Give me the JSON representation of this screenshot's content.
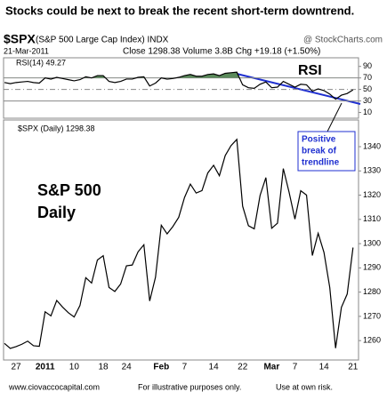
{
  "title": "Stocks could be next to break the recent short-term downtrend.",
  "header": {
    "symbol": "$SPX",
    "name": "(S&P 500 Large Cap Index) INDX",
    "source": "@ StockCharts.com",
    "date": "21-Mar-2011",
    "stats": "Close 1298.38  Volume 3.8B  Chg +19.18 (+1.50%)"
  },
  "footer": [
    "www.ciovaccocapital.com",
    "For illustrative purposes only.",
    "Use at own risk."
  ],
  "chart_data": [
    {
      "type": "line",
      "annotation": "RSI",
      "series": [
        {
          "name": "RSI(14) 49.27",
          "color": "#000000",
          "fill": "#5a8a5a",
          "values": [
            62,
            60,
            62,
            63,
            64,
            62,
            61,
            70,
            68,
            71,
            69,
            67,
            65,
            67,
            72,
            70,
            74,
            74,
            64,
            62,
            64,
            68,
            68,
            71,
            72,
            56,
            61,
            70,
            68,
            69,
            71,
            74,
            76,
            73,
            73,
            76,
            77,
            74,
            78,
            79,
            80,
            58,
            53,
            52,
            59,
            63,
            53,
            54,
            64,
            59,
            54,
            59,
            58,
            47,
            51,
            48,
            42,
            33,
            40,
            43,
            49.27
          ]
        }
      ],
      "ylim": [
        0,
        105
      ],
      "yticks": [
        10,
        30,
        50,
        70,
        90
      ],
      "reference_lines": [
        70,
        50,
        30
      ]
    },
    {
      "type": "line",
      "annotation": [
        "S&P 500",
        "Daily"
      ],
      "callout": [
        "Positive",
        "break of",
        "trendline"
      ],
      "categories": [
        null,
        null,
        "27",
        null,
        null,
        null,
        null,
        "2011",
        null,
        null,
        null,
        null,
        "10",
        null,
        null,
        null,
        null,
        "18",
        null,
        null,
        null,
        "24",
        null,
        null,
        null,
        null,
        null,
        "Feb",
        null,
        null,
        null,
        "7",
        null,
        null,
        null,
        null,
        "14",
        null,
        null,
        null,
        null,
        "22",
        null,
        null,
        null,
        null,
        "Mar",
        null,
        null,
        null,
        "7",
        null,
        null,
        null,
        null,
        "14",
        null,
        null,
        null,
        null,
        "21"
      ],
      "series": [
        {
          "name": "$SPX (Daily) 1298.38",
          "color": "#000000",
          "values": [
            1258.84,
            1256.77,
            1257.54,
            1258.51,
            1259.78,
            1257.88,
            1257.64,
            1271.87,
            1270.2,
            1276.56,
            1273.85,
            1271.5,
            1269.75,
            1274.48,
            1285.96,
            1283.76,
            1293.24,
            1295.02,
            1281.92,
            1280.26,
            1283.35,
            1290.84,
            1291.18,
            1296.63,
            1299.54,
            1276.34,
            1286.12,
            1307.59,
            1304.03,
            1307.1,
            1310.87,
            1319.05,
            1324.57,
            1320.88,
            1321.87,
            1329.15,
            1332.32,
            1328.01,
            1336.32,
            1340.43,
            1343.01,
            1315.44,
            1307.4,
            1306.1,
            1319.88,
            1327.22,
            1306.33,
            1308.44,
            1330.97,
            1321.15,
            1310.13,
            1321.82,
            1320.02,
            1295.11,
            1304.28,
            1296.39,
            1281.87,
            1256.88,
            1273.72,
            1279.21,
            1298.38
          ]
        }
      ],
      "ylim": [
        1252,
        1351
      ],
      "yticks": [
        1260,
        1270,
        1280,
        1290,
        1300,
        1310,
        1320,
        1330,
        1340
      ]
    }
  ]
}
